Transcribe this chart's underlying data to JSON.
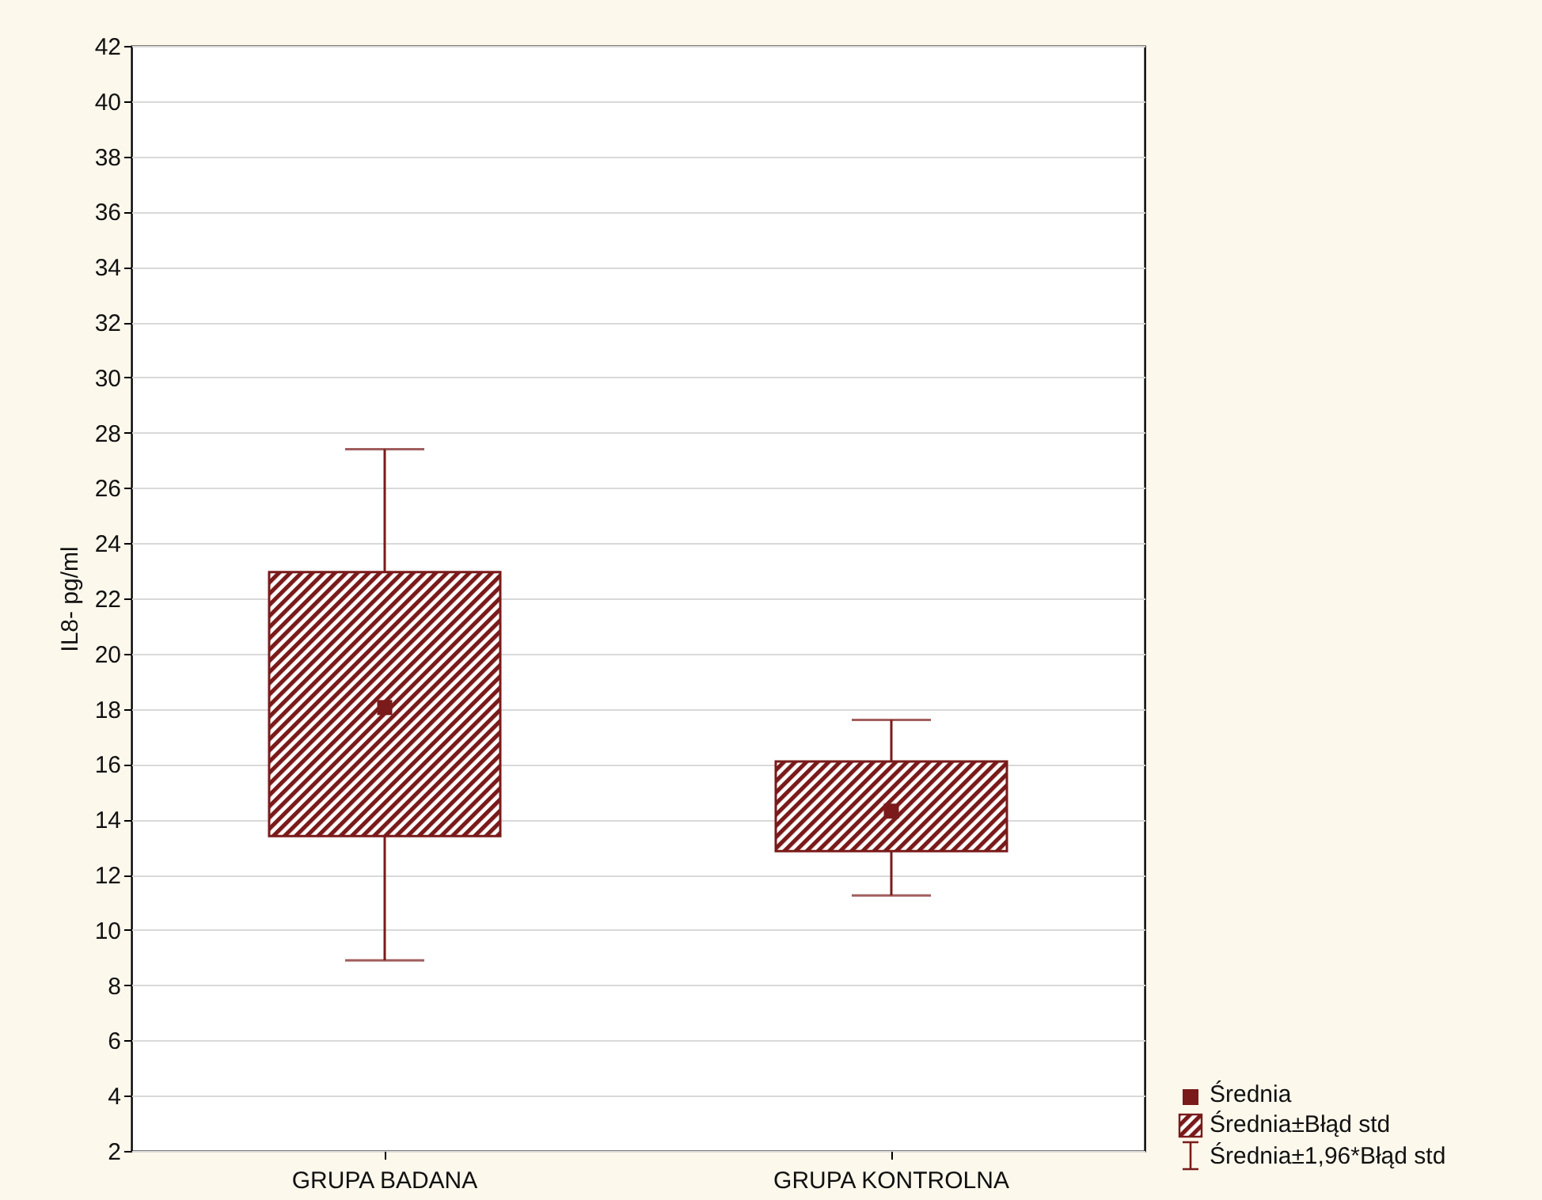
{
  "chart_data": {
    "type": "box",
    "categories": [
      "GRUPA BADANA",
      "GRUPA KONTROLNA"
    ],
    "ylabel": "IL8- pg/ml",
    "ylim": [
      2,
      42
    ],
    "yticks": [
      2,
      4,
      6,
      8,
      10,
      12,
      14,
      16,
      18,
      20,
      22,
      24,
      26,
      28,
      30,
      32,
      34,
      36,
      38,
      40,
      42
    ],
    "grid": "y",
    "legend": "bottom right",
    "marker": "square",
    "series": [
      {
        "name": "Średnia±Błąd std",
        "type": "box",
        "color": "#7a1a1a",
        "boxes": [
          {
            "low": 8.9,
            "q1": 13.4,
            "median": 18.05,
            "q3": 22.95,
            "high": 27.4
          },
          {
            "low": 11.25,
            "q1": 12.85,
            "median": 14.3,
            "q3": 16.1,
            "high": 17.6
          }
        ]
      }
    ],
    "annotations": [
      "Średnia",
      "Średnia±1,96*Błąd std"
    ]
  }
}
